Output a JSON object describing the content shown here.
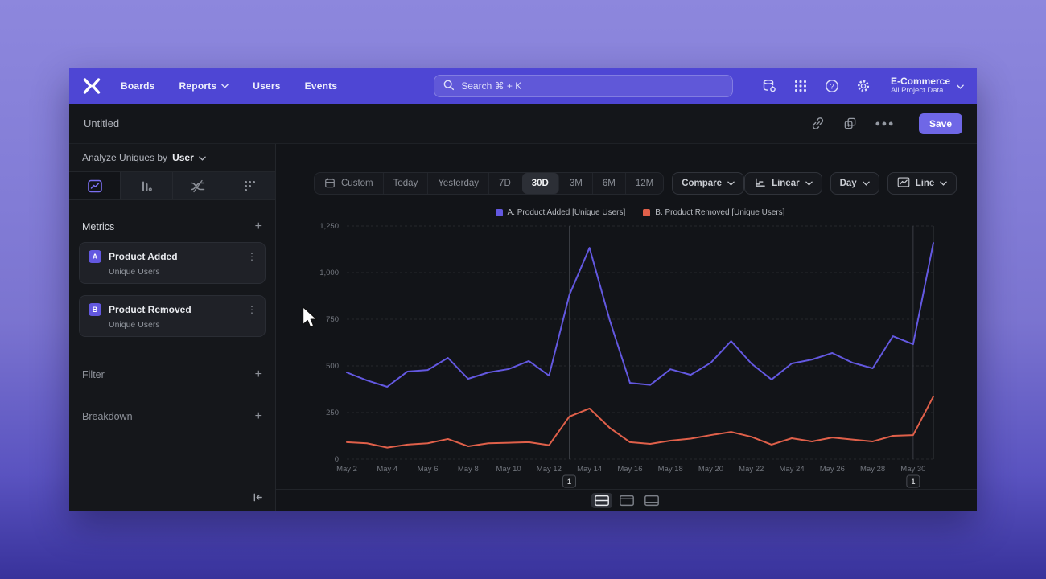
{
  "colors": {
    "navbar_bg": "#4e46d4",
    "accent": "#6f67e6",
    "series_a": "#6358e0",
    "series_b": "#e0604a"
  },
  "navbar": {
    "items": [
      {
        "label": "Boards"
      },
      {
        "label": "Reports"
      },
      {
        "label": "Users"
      },
      {
        "label": "Events"
      }
    ],
    "search_placeholder": "Search  ⌘ + K",
    "project_name": "E-Commerce",
    "project_subtitle": "All Project Data"
  },
  "titlebar": {
    "title": "Untitled",
    "save_label": "Save"
  },
  "sidebar": {
    "analyze_prefix": "Analyze Uniques by",
    "analyze_value": "User",
    "metrics_header": "Metrics",
    "metrics": [
      {
        "badge": "A",
        "name": "Product Added",
        "subtitle": "Unique Users"
      },
      {
        "badge": "B",
        "name": "Product Removed",
        "subtitle": "Unique Users"
      }
    ],
    "filter_label": "Filter",
    "breakdown_label": "Breakdown"
  },
  "toolbar": {
    "ranges": [
      "Custom",
      "Today",
      "Yesterday",
      "7D",
      "30D",
      "3M",
      "6M",
      "12M"
    ],
    "selected_range": "30D",
    "compare_label": "Compare",
    "scale_label": "Linear",
    "interval_label": "Day",
    "charttype_label": "Line"
  },
  "chart_data": {
    "type": "line",
    "x": [
      "May 2",
      "May 3",
      "May 4",
      "May 5",
      "May 6",
      "May 7",
      "May 8",
      "May 9",
      "May 10",
      "May 11",
      "May 12",
      "May 13",
      "May 14",
      "May 15",
      "May 16",
      "May 17",
      "May 18",
      "May 19",
      "May 20",
      "May 21",
      "May 22",
      "May 23",
      "May 24",
      "May 25",
      "May 26",
      "May 27",
      "May 28",
      "May 29",
      "May 30",
      "May 31"
    ],
    "series": [
      {
        "name": "A. Product Added [Unique Users]",
        "color": "#6358e0",
        "values": [
          465,
          422,
          388,
          470,
          478,
          543,
          431,
          465,
          483,
          526,
          448,
          879,
          1133,
          745,
          409,
          398,
          482,
          452,
          517,
          633,
          513,
          427,
          513,
          534,
          569,
          517,
          487,
          659,
          616,
          1159
        ]
      },
      {
        "name": "B. Product Removed [Unique Users]",
        "color": "#e0604a",
        "values": [
          91,
          85,
          62,
          78,
          85,
          108,
          69,
          85,
          88,
          91,
          75,
          228,
          272,
          168,
          91,
          82,
          99,
          110,
          129,
          146,
          120,
          78,
          112,
          95,
          116,
          105,
          95,
          125,
          129,
          336
        ]
      }
    ],
    "ylim": [
      0,
      1250
    ],
    "y_ticks": [
      0,
      250,
      500,
      750,
      1000,
      1250
    ],
    "x_tick_every": 2,
    "grid": "horizontal-dashed",
    "legend_position": "top-center",
    "legend": [
      "A. Product Added [Unique Users]",
      "B. Product Removed [Unique Users]"
    ],
    "annotations": [
      {
        "label": "1",
        "x": "May 13"
      },
      {
        "label": "1",
        "x": "May 30"
      }
    ]
  },
  "footer": {
    "layouts": [
      "chart-and-table",
      "chart-only",
      "table-only"
    ]
  }
}
